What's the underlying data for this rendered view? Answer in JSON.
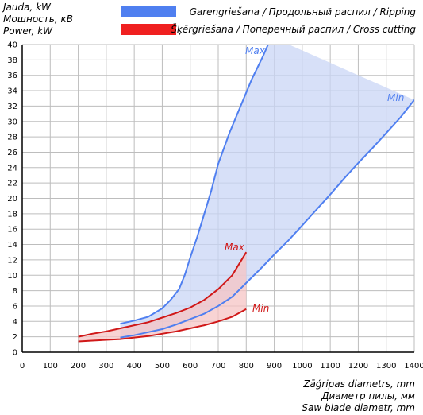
{
  "y_axis_label": [
    "Jauda, kW",
    "Мощность, кВ",
    "Power, kW"
  ],
  "x_axis_label": [
    "Zāģripas diametrs, mm",
    "Диаметр пилы, мм",
    "Saw blade diametr, mm"
  ],
  "legend": [
    {
      "label": "Garengriešana / Продольный распил / Ripping",
      "color": "#4f7ff0"
    },
    {
      "label": "Šķērgriešana / Поперечный распил / Cross cutting",
      "color": "#f02020"
    }
  ],
  "chart_data": {
    "type": "area",
    "xlim": [
      0,
      1400
    ],
    "ylim": [
      0,
      40
    ],
    "x_ticks": [
      0,
      100,
      200,
      300,
      400,
      500,
      600,
      700,
      800,
      900,
      1000,
      1100,
      1200,
      1300,
      1400
    ],
    "y_ticks": [
      0,
      2,
      4,
      6,
      8,
      10,
      12,
      14,
      16,
      18,
      20,
      22,
      24,
      26,
      28,
      30,
      32,
      34,
      36,
      38,
      40
    ],
    "grid": true,
    "series": [
      {
        "name": "Garengriešana / Продольный распил / Ripping",
        "color": "#4f7ff0",
        "fill": "#c9d6f5",
        "max_label": "Max",
        "min_label": "Min",
        "max": [
          [
            350,
            3.7
          ],
          [
            400,
            4.1
          ],
          [
            450,
            4.6
          ],
          [
            500,
            5.7
          ],
          [
            530,
            6.8
          ],
          [
            560,
            8.2
          ],
          [
            580,
            10
          ],
          [
            600,
            12.3
          ],
          [
            625,
            15
          ],
          [
            650,
            18
          ],
          [
            675,
            21
          ],
          [
            700,
            24.5
          ],
          [
            740,
            28.5
          ],
          [
            780,
            32
          ],
          [
            820,
            35.5
          ],
          [
            860,
            38.5
          ],
          [
            890,
            41
          ]
        ],
        "min": [
          [
            350,
            1.9
          ],
          [
            400,
            2.2
          ],
          [
            450,
            2.6
          ],
          [
            500,
            3.0
          ],
          [
            550,
            3.6
          ],
          [
            600,
            4.3
          ],
          [
            650,
            5.0
          ],
          [
            700,
            6.0
          ],
          [
            750,
            7.2
          ],
          [
            800,
            9.0
          ],
          [
            850,
            10.8
          ],
          [
            900,
            12.7
          ],
          [
            950,
            14.5
          ],
          [
            1000,
            16.5
          ],
          [
            1050,
            18.5
          ],
          [
            1100,
            20.5
          ],
          [
            1150,
            22.6
          ],
          [
            1200,
            24.6
          ],
          [
            1250,
            26.5
          ],
          [
            1300,
            28.5
          ],
          [
            1350,
            30.5
          ],
          [
            1400,
            32.8
          ]
        ]
      },
      {
        "name": "Šķērgriešana / Поперечный распил / Cross cutting",
        "color": "#d01818",
        "fill": "#f5c4c4",
        "max_label": "Max",
        "min_label": "Min",
        "max": [
          [
            200,
            2.0
          ],
          [
            250,
            2.4
          ],
          [
            300,
            2.7
          ],
          [
            350,
            3.1
          ],
          [
            400,
            3.5
          ],
          [
            450,
            3.9
          ],
          [
            500,
            4.5
          ],
          [
            550,
            5.1
          ],
          [
            600,
            5.8
          ],
          [
            650,
            6.8
          ],
          [
            700,
            8.2
          ],
          [
            750,
            10.0
          ],
          [
            800,
            13.0
          ]
        ],
        "min": [
          [
            200,
            1.4
          ],
          [
            250,
            1.5
          ],
          [
            300,
            1.6
          ],
          [
            350,
            1.7
          ],
          [
            400,
            1.9
          ],
          [
            450,
            2.1
          ],
          [
            500,
            2.4
          ],
          [
            550,
            2.7
          ],
          [
            600,
            3.1
          ],
          [
            650,
            3.5
          ],
          [
            700,
            4.0
          ],
          [
            750,
            4.6
          ],
          [
            800,
            5.6
          ]
        ]
      }
    ]
  }
}
